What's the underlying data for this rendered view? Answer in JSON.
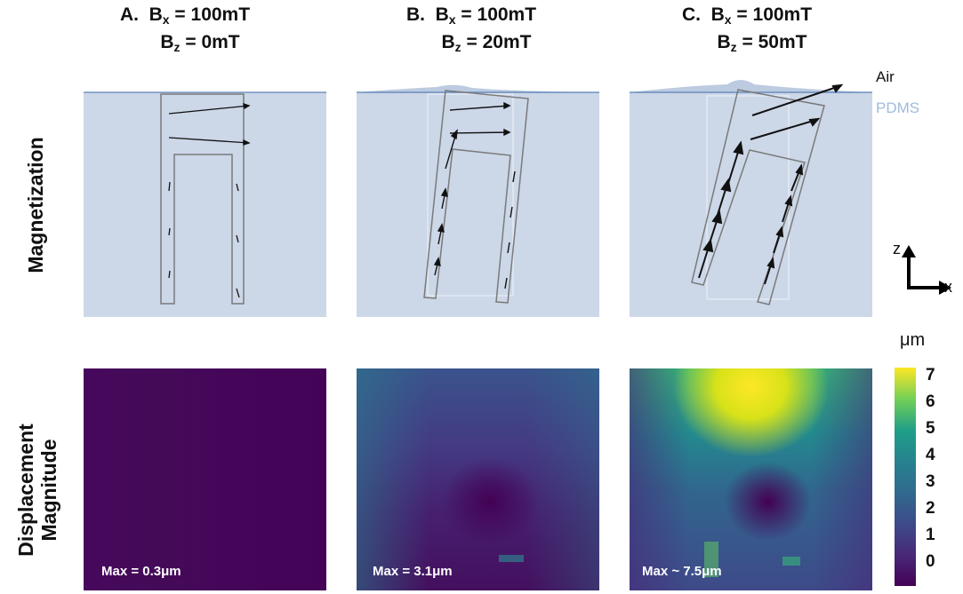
{
  "panels": [
    {
      "letter": "A.",
      "bx_label": "B",
      "bx_sub": "x",
      "bx_value": "= 100mT",
      "bz_label": "B",
      "bz_sub": "z",
      "bz_value": "= 0mT",
      "max_text": "Max = 0.3μm"
    },
    {
      "letter": "B.",
      "bx_label": "B",
      "bx_sub": "x",
      "bx_value": "= 100mT",
      "bz_label": "B",
      "bz_sub": "z",
      "bz_value": "= 20mT",
      "max_text": "Max = 3.1μm"
    },
    {
      "letter": "C.",
      "bx_label": "B",
      "bx_sub": "x",
      "bx_value": "= 100mT",
      "bz_label": "B",
      "bz_sub": "z",
      "bz_value": "= 50mT",
      "max_text": "Max ~ 7.5μm"
    }
  ],
  "row_labels": {
    "top": "Magnetization",
    "bottom_line1": "Displacement",
    "bottom_line2": "Magnitude"
  },
  "media": {
    "air": "Air",
    "pdms": "PDMS"
  },
  "axes": {
    "z": "z",
    "x": "x"
  },
  "colorbar": {
    "unit": "μm",
    "ticks": [
      "7",
      "6",
      "5",
      "4",
      "3",
      "2",
      "1",
      "0"
    ],
    "min": 0,
    "max": 7
  },
  "colors": {
    "pdms": "#ccd7e8",
    "surface_line": "#5b84b8",
    "pdms_text": "#9fbcdc",
    "viridis_low": "#440154",
    "viridis_high": "#fde725"
  }
}
